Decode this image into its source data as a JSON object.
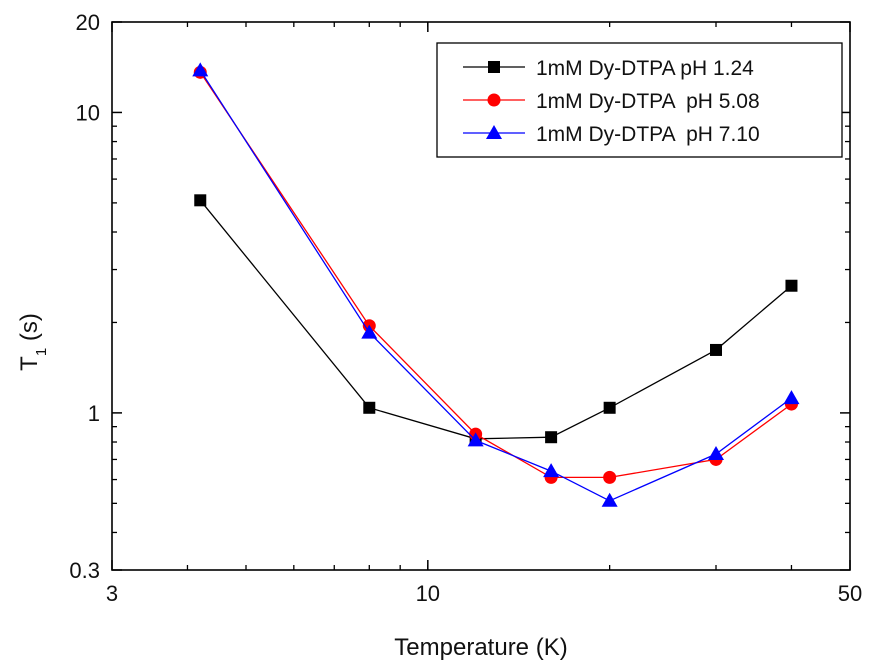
{
  "chart_data": {
    "type": "line",
    "xlabel": "Temperature (K)",
    "ylabel_main": "T",
    "ylabel_sub": "1",
    "ylabel_unit": " (s)",
    "x_scale": "log",
    "y_scale": "log",
    "xlim": [
      3,
      50
    ],
    "ylim": [
      0.3,
      20
    ],
    "x_ticks": [
      3,
      10,
      50
    ],
    "x_tick_labels": [
      "3",
      "10",
      "50"
    ],
    "y_ticks": [
      0.3,
      1,
      10,
      20
    ],
    "y_tick_labels": [
      "0.3",
      "1",
      "10",
      "20"
    ],
    "grid": false,
    "legend_position": "top-right",
    "series": [
      {
        "name": "1mM Dy-DTPA pH 1.24",
        "color": "#000000",
        "marker": "square",
        "x": [
          4.2,
          8.0,
          12.0,
          16.0,
          20.0,
          30.0,
          40.0
        ],
        "y": [
          5.1,
          1.04,
          0.82,
          0.83,
          1.04,
          1.62,
          2.65
        ]
      },
      {
        "name": "1mM Dy-DTPA  pH 5.08",
        "color": "#ff0000",
        "marker": "circle",
        "x": [
          4.2,
          8.0,
          12.0,
          16.0,
          20.0,
          30.0,
          40.0
        ],
        "y": [
          13.6,
          1.95,
          0.85,
          0.61,
          0.61,
          0.7,
          1.07
        ]
      },
      {
        "name": "1mM Dy-DTPA  pH 7.10",
        "color": "#0000ff",
        "marker": "triangle",
        "x": [
          4.2,
          8.0,
          12.0,
          16.0,
          20.0,
          30.0,
          40.0
        ],
        "y": [
          13.8,
          1.85,
          0.81,
          0.64,
          0.51,
          0.73,
          1.12
        ]
      }
    ]
  }
}
